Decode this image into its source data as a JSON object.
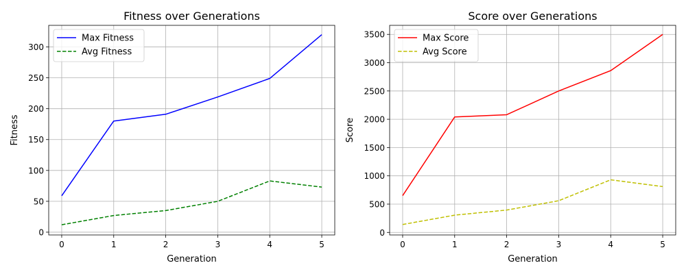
{
  "chart_data": [
    {
      "type": "line",
      "title": "Fitness over Generations",
      "xlabel": "Generation",
      "ylabel": "Fitness",
      "x": [
        0,
        1,
        2,
        3,
        4,
        5
      ],
      "xticks": [
        0,
        1,
        2,
        3,
        4,
        5
      ],
      "yticks": [
        0,
        50,
        100,
        150,
        200,
        250,
        300
      ],
      "xlim": [
        -0.25,
        5.25
      ],
      "ylim": [
        -4.5,
        335
      ],
      "grid": true,
      "legend_position": "upper-left",
      "series": [
        {
          "name": "Max Fitness",
          "values": [
            59,
            180,
            191,
            219,
            249,
            320
          ],
          "color": "#0000ff",
          "dash": "solid"
        },
        {
          "name": "Avg Fitness",
          "values": [
            12,
            27,
            35,
            50,
            83,
            73
          ],
          "color": "#008000",
          "dash": "dashed"
        }
      ]
    },
    {
      "type": "line",
      "title": "Score over Generations",
      "xlabel": "Generation",
      "ylabel": "Score",
      "x": [
        0,
        1,
        2,
        3,
        4,
        5
      ],
      "xticks": [
        0,
        1,
        2,
        3,
        4,
        5
      ],
      "yticks": [
        0,
        500,
        1000,
        1500,
        2000,
        2500,
        3000,
        3500
      ],
      "xlim": [
        -0.25,
        5.25
      ],
      "ylim": [
        -45,
        3660
      ],
      "grid": true,
      "legend_position": "upper-left",
      "series": [
        {
          "name": "Max Score",
          "values": [
            650,
            2040,
            2080,
            2500,
            2860,
            3500
          ],
          "color": "#ff0000",
          "dash": "solid"
        },
        {
          "name": "Avg Score",
          "values": [
            140,
            305,
            395,
            560,
            930,
            810
          ],
          "color": "#bfbf00",
          "dash": "dashed"
        }
      ]
    }
  ]
}
